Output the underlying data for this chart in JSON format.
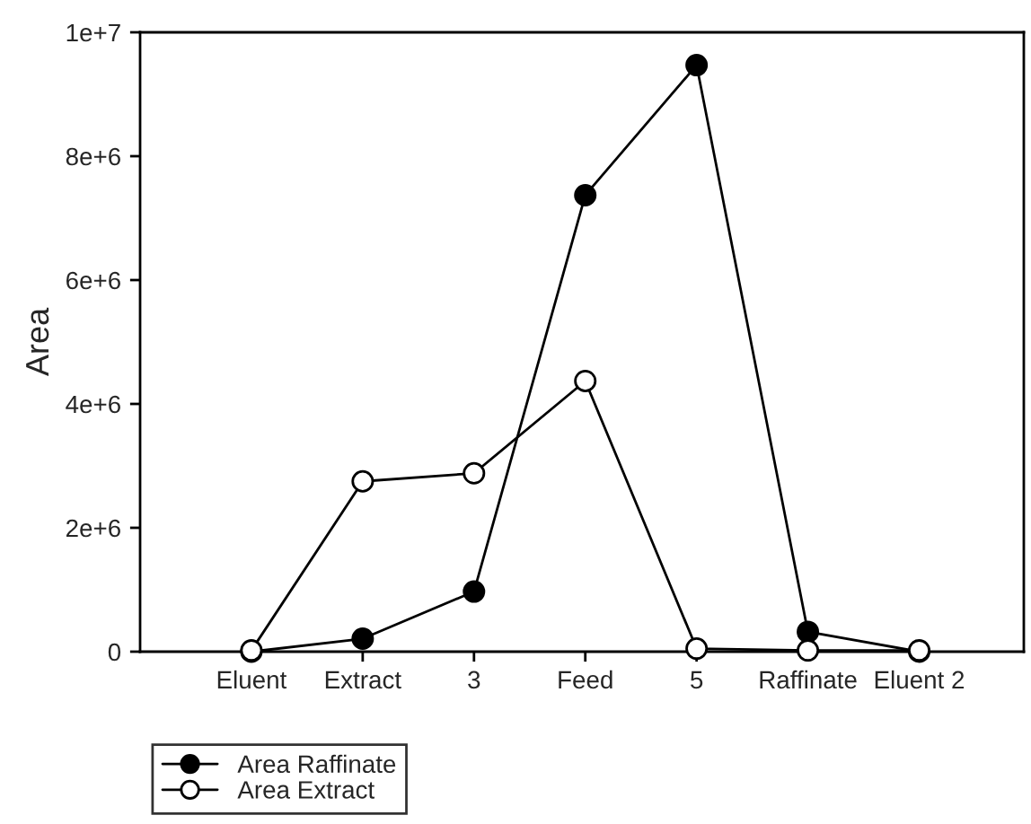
{
  "chart_data": {
    "type": "line",
    "ylabel": "Area",
    "categories": [
      "Eluent",
      "Extract",
      "3",
      "Feed",
      "5",
      "Raffinate",
      "Eluent 2"
    ],
    "series": [
      {
        "name": "Area Raffinate",
        "color": "#000000",
        "values": [
          0,
          210000,
          970000,
          7370000,
          9470000,
          320000,
          0
        ]
      },
      {
        "name": "Area Extract",
        "color": "#000000",
        "values": [
          20000,
          2750000,
          2880000,
          4370000,
          50000,
          20000,
          20000
        ]
      }
    ],
    "ylim": [
      0,
      10000000
    ],
    "yticks": [
      0,
      {
        "value": 2000000,
        "label": "2e+6"
      },
      {
        "value": 4000000,
        "label": "4e+6"
      },
      {
        "value": 6000000,
        "label": "6e+6"
      },
      {
        "value": 8000000,
        "label": "8e+6"
      },
      {
        "value": 10000000,
        "label": "1e+7"
      }
    ],
    "grid": false,
    "legend": "bottom left",
    "marker": "circle",
    "line_style": "solid"
  }
}
